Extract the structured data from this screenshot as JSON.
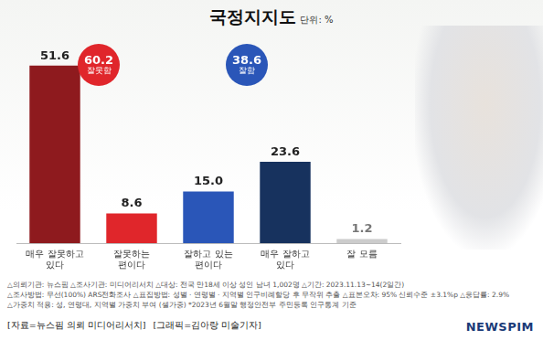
{
  "chart_data": {
    "type": "bar",
    "title": "국정지지도",
    "subtitle": "단위: %",
    "categories": [
      [
        "매우 잘못하고",
        "있다"
      ],
      [
        "잘못하는",
        "편이다"
      ],
      [
        "잘하고 있는",
        "편이다"
      ],
      [
        "매우 잘하고",
        "있다"
      ],
      "잘 모름"
    ],
    "values": [
      51.6,
      8.6,
      15.0,
      23.6,
      1.2
    ],
    "value_labels": [
      "51.6",
      "8.6",
      "15.0",
      "23.6",
      "1.2"
    ],
    "colors": [
      "#8e1a1e",
      "#e0262b",
      "#2a56b8",
      "#17325e",
      "#cccccc"
    ],
    "ylim": [
      0,
      60
    ],
    "grid": false,
    "legend": false,
    "data_labels": true,
    "tick_labels": "x",
    "annotations": [
      {
        "value": 60.2,
        "text": "잘못함",
        "color": "#e0262b"
      },
      {
        "value": 38.6,
        "text": "잘함",
        "color": "#2a56b8"
      }
    ],
    "footnotes": [
      "△의뢰기관: 뉴스핌 △조사기관: 미디어리서치 △대상: 전국 만18세 이상 성인 남녀 1,002명 △기간: 2023.11.13~14(2일간)",
      "△조사방법: 무선(100%) ARS전화조사 △표집방법: 성별 · 연령별 · 지역별 인구비례할당 후 무작위 추출 △표본오차: 95% 신뢰수준 ±3.1%p △응답률: 2.9%",
      "△가중치 적용: 성, 연령대, 지역별 가중치 부여 (셀가중) *2023년 6월말 행정안전부 주민등록 인구통계 기준"
    ],
    "source": [
      "[자료=뉴스핌 의뢰 미디어리서치]",
      "[그래픽=김아랑 미술기자]"
    ],
    "logo": "NEWSPIM"
  }
}
